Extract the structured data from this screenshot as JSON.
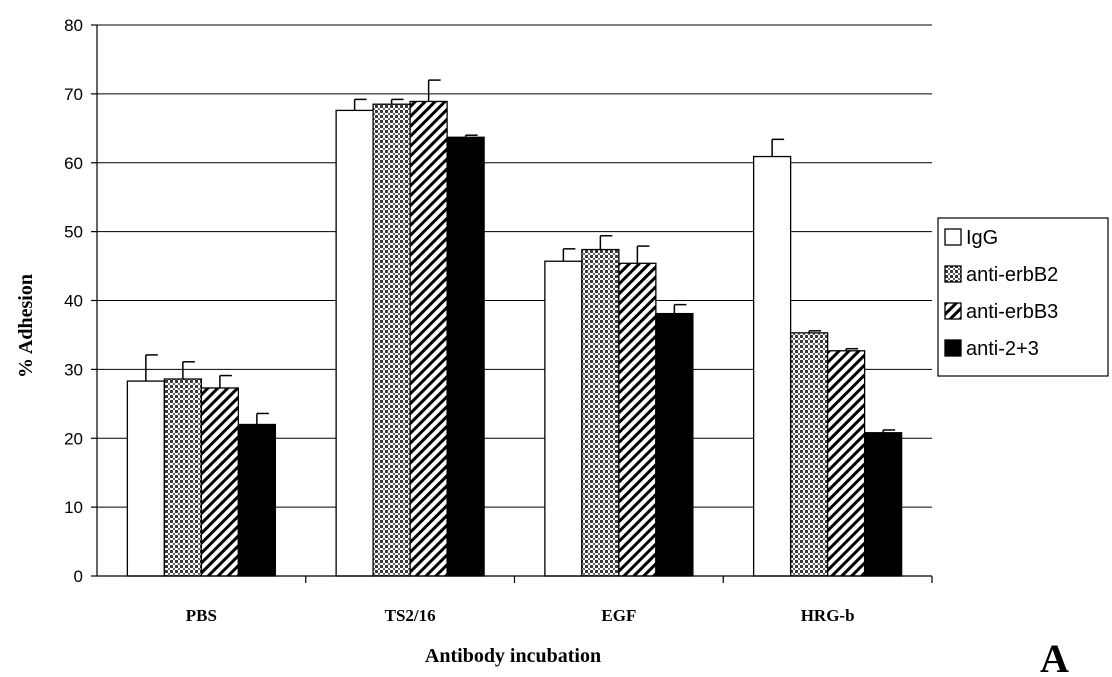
{
  "chart_data": {
    "type": "bar",
    "categories": [
      "PBS",
      "TS2/16",
      "EGF",
      "HRG-b"
    ],
    "xlabel": "Antibody incubation",
    "ylabel": "% Adhesion",
    "ylim": [
      0,
      80
    ],
    "yticks": [
      0,
      10,
      20,
      30,
      40,
      50,
      60,
      70,
      80
    ],
    "grid": true,
    "legend_position": "right",
    "panel_label": "A",
    "series": [
      {
        "name": "IgG",
        "pattern": "white",
        "values": [
          28.3,
          67.6,
          45.7,
          60.9
        ],
        "errors": [
          3.8,
          1.6,
          1.8,
          2.5
        ]
      },
      {
        "name": "anti-erbB2",
        "pattern": "crosshatch",
        "values": [
          28.6,
          68.5,
          47.4,
          35.3
        ],
        "errors": [
          2.5,
          0.7,
          2.0,
          0.3
        ]
      },
      {
        "name": "anti-erbB3",
        "pattern": "diagonal",
        "values": [
          27.3,
          68.9,
          45.4,
          32.7
        ],
        "errors": [
          1.8,
          3.1,
          2.5,
          0.3
        ]
      },
      {
        "name": "anti-2+3",
        "pattern": "black",
        "values": [
          22.0,
          63.7,
          38.1,
          20.8
        ],
        "errors": [
          1.6,
          0.3,
          1.3,
          0.4
        ]
      }
    ]
  }
}
